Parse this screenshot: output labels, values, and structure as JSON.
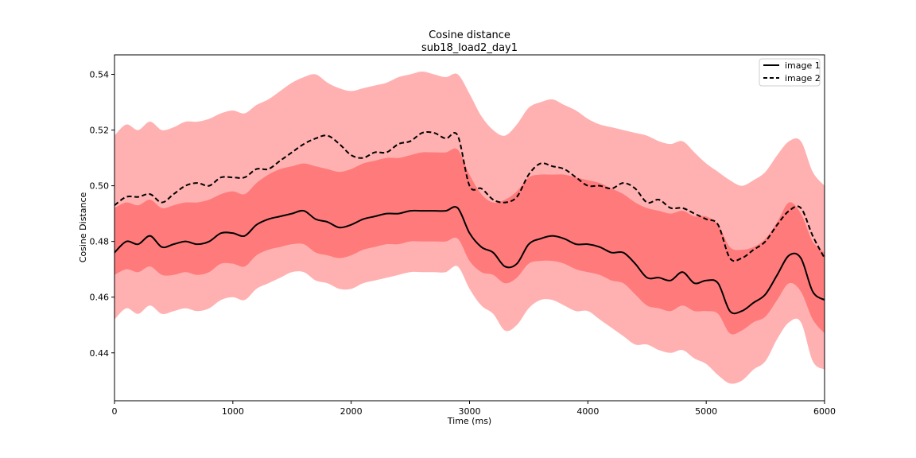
{
  "chart_data": {
    "type": "line",
    "title": "Cosine distance",
    "subtitle": "sub18_load2_day1",
    "xlabel": "Time (ms)",
    "ylabel": "Cosine Distance",
    "xlim": [
      0,
      6000
    ],
    "ylim": [
      0.4228,
      0.547
    ],
    "xticks": [
      0,
      1000,
      2000,
      3000,
      4000,
      5000,
      6000
    ],
    "xtick_labels": [
      "0",
      "1000",
      "2000",
      "3000",
      "4000",
      "5000",
      "6000"
    ],
    "yticks": [
      0.44,
      0.46,
      0.48,
      0.5,
      0.52,
      0.54
    ],
    "ytick_labels": [
      "0.44",
      "0.46",
      "0.48",
      "0.50",
      "0.52",
      "0.54"
    ],
    "grid": false,
    "legend_position": "top-right",
    "colors": {
      "outer_band": "#ffb1b1",
      "inner_band": "#ff7b7b",
      "line": "#000000"
    },
    "x": [
      0,
      100,
      200,
      300,
      400,
      500,
      600,
      700,
      800,
      900,
      1000,
      1100,
      1200,
      1300,
      1400,
      1500,
      1600,
      1700,
      1800,
      1900,
      2000,
      2100,
      2200,
      2300,
      2400,
      2500,
      2600,
      2700,
      2800,
      2900,
      3000,
      3100,
      3200,
      3300,
      3400,
      3500,
      3600,
      3700,
      3800,
      3900,
      4000,
      4100,
      4200,
      4300,
      4400,
      4500,
      4600,
      4700,
      4800,
      4900,
      5000,
      5100,
      5200,
      5300,
      5400,
      5500,
      5600,
      5700,
      5800,
      5900,
      6000
    ],
    "series": [
      {
        "name": "image 1",
        "line_style": "solid",
        "values": [
          0.476,
          0.48,
          0.479,
          0.482,
          0.478,
          0.479,
          0.48,
          0.479,
          0.48,
          0.483,
          0.483,
          0.482,
          0.486,
          0.488,
          0.489,
          0.49,
          0.491,
          0.488,
          0.487,
          0.485,
          0.486,
          0.488,
          0.489,
          0.49,
          0.49,
          0.491,
          0.491,
          0.491,
          0.491,
          0.492,
          0.483,
          0.478,
          0.476,
          0.471,
          0.472,
          0.479,
          0.481,
          0.482,
          0.481,
          0.479,
          0.479,
          0.478,
          0.476,
          0.476,
          0.472,
          0.467,
          0.467,
          0.466,
          0.469,
          0.465,
          0.466,
          0.465,
          0.455,
          0.455,
          0.458,
          0.461,
          0.468,
          0.475,
          0.474,
          0.462,
          0.459
        ],
        "band_inner": [
          [
            0.468,
            0.492
          ],
          [
            0.47,
            0.494
          ],
          [
            0.469,
            0.493
          ],
          [
            0.471,
            0.495
          ],
          [
            0.468,
            0.492
          ],
          [
            0.468,
            0.493
          ],
          [
            0.469,
            0.494
          ],
          [
            0.468,
            0.494
          ],
          [
            0.469,
            0.495
          ],
          [
            0.472,
            0.497
          ],
          [
            0.472,
            0.498
          ],
          [
            0.471,
            0.497
          ],
          [
            0.475,
            0.501
          ],
          [
            0.477,
            0.504
          ],
          [
            0.478,
            0.506
          ],
          [
            0.479,
            0.507
          ],
          [
            0.479,
            0.508
          ],
          [
            0.476,
            0.507
          ],
          [
            0.475,
            0.506
          ],
          [
            0.474,
            0.505
          ],
          [
            0.475,
            0.506
          ],
          [
            0.477,
            0.508
          ],
          [
            0.478,
            0.509
          ],
          [
            0.479,
            0.51
          ],
          [
            0.479,
            0.51
          ],
          [
            0.48,
            0.511
          ],
          [
            0.48,
            0.512
          ],
          [
            0.48,
            0.512
          ],
          [
            0.48,
            0.512
          ],
          [
            0.481,
            0.513
          ],
          [
            0.473,
            0.504
          ],
          [
            0.469,
            0.497
          ],
          [
            0.468,
            0.494
          ],
          [
            0.465,
            0.495
          ],
          [
            0.467,
            0.498
          ],
          [
            0.472,
            0.503
          ],
          [
            0.473,
            0.504
          ],
          [
            0.473,
            0.504
          ],
          [
            0.472,
            0.504
          ],
          [
            0.47,
            0.503
          ],
          [
            0.469,
            0.502
          ],
          [
            0.468,
            0.501
          ],
          [
            0.466,
            0.499
          ],
          [
            0.465,
            0.497
          ],
          [
            0.461,
            0.494
          ],
          [
            0.457,
            0.492
          ],
          [
            0.456,
            0.491
          ],
          [
            0.455,
            0.49
          ],
          [
            0.457,
            0.491
          ],
          [
            0.455,
            0.489
          ],
          [
            0.455,
            0.489
          ],
          [
            0.454,
            0.486
          ],
          [
            0.447,
            0.478
          ],
          [
            0.448,
            0.477
          ],
          [
            0.451,
            0.478
          ],
          [
            0.453,
            0.481
          ],
          [
            0.459,
            0.487
          ],
          [
            0.465,
            0.494
          ],
          [
            0.462,
            0.49
          ],
          [
            0.452,
            0.48
          ],
          [
            0.447,
            0.476
          ]
        ],
        "band_outer": [
          [
            0.452,
            0.518
          ],
          [
            0.456,
            0.522
          ],
          [
            0.454,
            0.52
          ],
          [
            0.457,
            0.523
          ],
          [
            0.454,
            0.52
          ],
          [
            0.455,
            0.521
          ],
          [
            0.456,
            0.523
          ],
          [
            0.455,
            0.523
          ],
          [
            0.456,
            0.524
          ],
          [
            0.459,
            0.526
          ],
          [
            0.46,
            0.527
          ],
          [
            0.459,
            0.526
          ],
          [
            0.463,
            0.529
          ],
          [
            0.465,
            0.531
          ],
          [
            0.467,
            0.534
          ],
          [
            0.469,
            0.537
          ],
          [
            0.469,
            0.539
          ],
          [
            0.466,
            0.54
          ],
          [
            0.465,
            0.537
          ],
          [
            0.463,
            0.535
          ],
          [
            0.463,
            0.534
          ],
          [
            0.465,
            0.535
          ],
          [
            0.466,
            0.536
          ],
          [
            0.467,
            0.537
          ],
          [
            0.468,
            0.539
          ],
          [
            0.469,
            0.54
          ],
          [
            0.469,
            0.541
          ],
          [
            0.469,
            0.54
          ],
          [
            0.469,
            0.539
          ],
          [
            0.471,
            0.54
          ],
          [
            0.463,
            0.533
          ],
          [
            0.457,
            0.525
          ],
          [
            0.454,
            0.52
          ],
          [
            0.448,
            0.518
          ],
          [
            0.45,
            0.522
          ],
          [
            0.456,
            0.528
          ],
          [
            0.459,
            0.53
          ],
          [
            0.459,
            0.531
          ],
          [
            0.457,
            0.529
          ],
          [
            0.455,
            0.527
          ],
          [
            0.455,
            0.524
          ],
          [
            0.452,
            0.522
          ],
          [
            0.449,
            0.521
          ],
          [
            0.446,
            0.52
          ],
          [
            0.443,
            0.519
          ],
          [
            0.443,
            0.518
          ],
          [
            0.441,
            0.516
          ],
          [
            0.44,
            0.515
          ],
          [
            0.441,
            0.516
          ],
          [
            0.438,
            0.512
          ],
          [
            0.436,
            0.508
          ],
          [
            0.432,
            0.505
          ],
          [
            0.429,
            0.502
          ],
          [
            0.43,
            0.5
          ],
          [
            0.434,
            0.502
          ],
          [
            0.437,
            0.505
          ],
          [
            0.445,
            0.511
          ],
          [
            0.451,
            0.516
          ],
          [
            0.451,
            0.516
          ],
          [
            0.437,
            0.505
          ],
          [
            0.434,
            0.5
          ]
        ]
      },
      {
        "name": "image 2",
        "line_style": "dashed",
        "values": [
          0.493,
          0.496,
          0.496,
          0.497,
          0.494,
          0.497,
          0.5,
          0.501,
          0.5,
          0.503,
          0.503,
          0.503,
          0.506,
          0.506,
          0.509,
          0.512,
          0.515,
          0.517,
          0.518,
          0.515,
          0.511,
          0.51,
          0.512,
          0.512,
          0.515,
          0.516,
          0.519,
          0.519,
          0.517,
          0.518,
          0.5,
          0.499,
          0.495,
          0.494,
          0.496,
          0.504,
          0.508,
          0.507,
          0.506,
          0.503,
          0.5,
          0.5,
          0.499,
          0.501,
          0.499,
          0.494,
          0.495,
          0.492,
          0.492,
          0.49,
          0.488,
          0.486,
          0.474,
          0.474,
          0.477,
          0.48,
          0.486,
          0.491,
          0.492,
          0.482,
          0.474
        ]
      }
    ]
  },
  "legend": {
    "items": [
      {
        "label": "image 1",
        "style": "solid"
      },
      {
        "label": "image 2",
        "style": "dashed"
      }
    ]
  }
}
